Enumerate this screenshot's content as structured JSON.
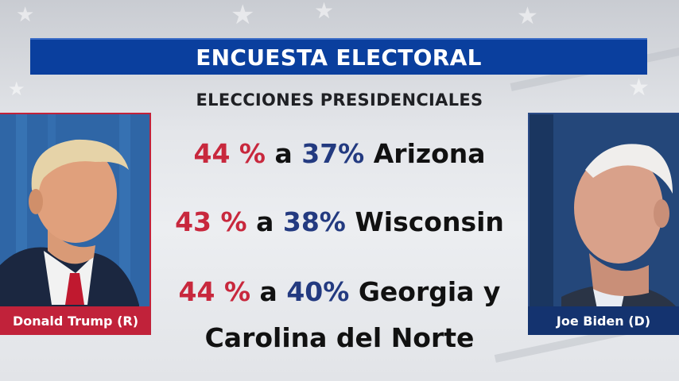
{
  "banner": {
    "title": "ENCUESTA ELECTORAL",
    "subtitle": "ELECCIONES PRESIDENCIALES"
  },
  "polls": [
    {
      "rep": "44 %",
      "connector": "a",
      "dem": "37%",
      "state": "Arizona",
      "state_line2": ""
    },
    {
      "rep": "43 %",
      "connector": "a",
      "dem": "38%",
      "state": "Wisconsin",
      "state_line2": ""
    },
    {
      "rep": "44 %",
      "connector": "a",
      "dem": "40%",
      "state": "Georgia y",
      "state_line2": "Carolina del Norte"
    }
  ],
  "candidates": {
    "left": {
      "label": "Donald Trump (R)"
    },
    "right": {
      "label": "Joe Biden (D)"
    }
  },
  "colors": {
    "banner_blue": "#0a3f9e",
    "republican_red": "#c8283d",
    "democrat_blue": "#233a80"
  }
}
